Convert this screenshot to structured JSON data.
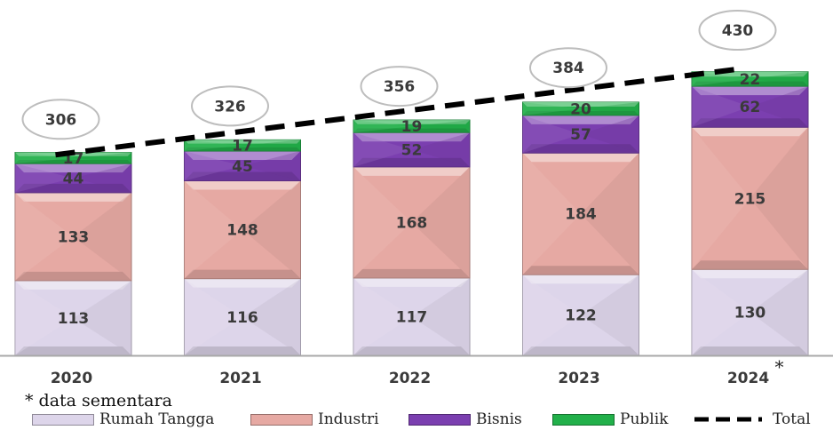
{
  "chart_data": {
    "type": "bar",
    "stacked": true,
    "categories": [
      "2020",
      "2021",
      "2022",
      "2023",
      "2024"
    ],
    "category_note": [
      "",
      "",
      "",
      "",
      "*"
    ],
    "series": [
      {
        "name": "Rumah Tangga",
        "values": [
          113,
          116,
          117,
          122,
          130
        ],
        "color": "#ddd5ea"
      },
      {
        "name": "Industri",
        "values": [
          133,
          148,
          168,
          184,
          215
        ],
        "color": "#e6a9a3"
      },
      {
        "name": "Bisnis",
        "values": [
          44,
          45,
          52,
          57,
          62
        ],
        "color": "#7b3fb0"
      },
      {
        "name": "Publik",
        "values": [
          17,
          17,
          19,
          20,
          22
        ],
        "color": "#22b04a"
      }
    ],
    "totals": {
      "name": "Total",
      "values": [
        306,
        326,
        356,
        384,
        430
      ]
    },
    "ylim": [
      0,
      430
    ],
    "grid": false,
    "legend": "bottom"
  },
  "footnote": "* data sementara"
}
